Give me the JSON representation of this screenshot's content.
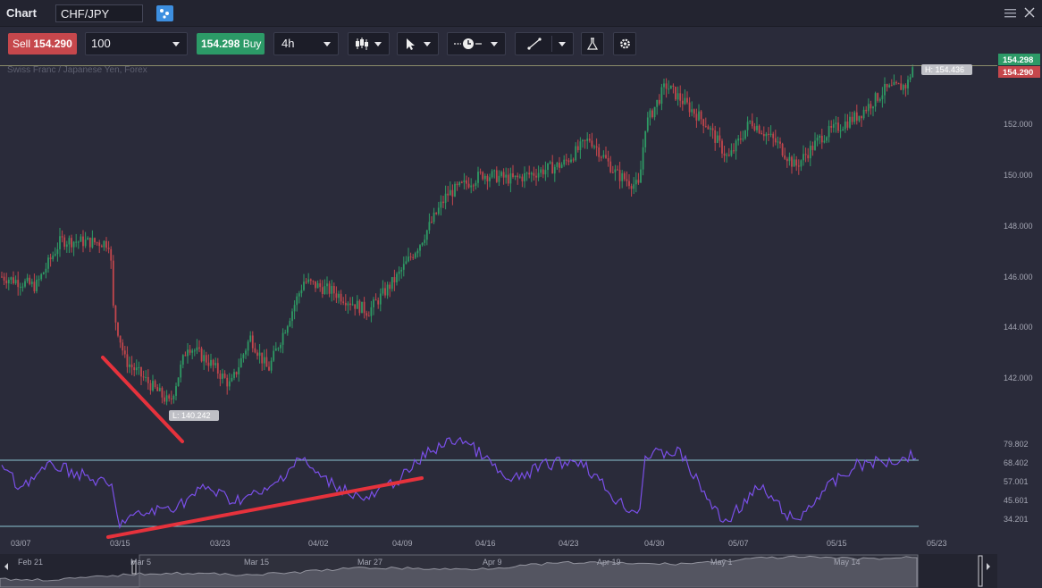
{
  "window": {
    "title": "Chart",
    "symbol_value": "CHF/JPY"
  },
  "toolbar": {
    "sell_label": "Sell",
    "sell_price": "154.290",
    "quantity": "100",
    "buy_price": "154.298",
    "buy_label": "Buy",
    "timeframe": "4h"
  },
  "chart": {
    "instrument_caption": "Swiss Franc / Japanese Yen, Forex",
    "price_axis_ticks": [
      "152.000",
      "150.000",
      "148.000",
      "146.000",
      "144.000",
      "142.000"
    ],
    "ask_tag": "154.298",
    "bid_tag": "154.290",
    "high_label": "H: 154.436",
    "low_label": "L: 140.242",
    "rsi_axis_ticks": [
      "79.802",
      "68.402",
      "57.001",
      "45.601",
      "34.201"
    ],
    "date_ticks": [
      "03/07",
      "03/15",
      "03/23",
      "04/02",
      "04/09",
      "04/16",
      "04/23",
      "04/30",
      "05/07",
      "05/15",
      "05/23"
    ],
    "navigator_ticks": [
      "Feb 21",
      "Mar 5",
      "Mar 15",
      "Mar 27",
      "Apr 9",
      "Apr 19",
      "May 1",
      "May 14"
    ],
    "colors": {
      "up": "#2e9a64",
      "down": "#c2464c",
      "rsi_line": "#7a4fe8",
      "trend_line": "#e6323c",
      "ask": "#2c9a67",
      "bid": "#c6474c"
    }
  },
  "chart_data": {
    "type": "line",
    "x": [
      "03/07",
      "03/15",
      "03/23",
      "04/02",
      "04/09",
      "04/16",
      "04/23",
      "04/30",
      "05/07",
      "05/15",
      "05/23"
    ],
    "series": [
      {
        "name": "",
        "values": [
          146.1,
          142.8,
          142.5,
          145.9,
          145.5,
          149.9,
          150.5,
          153.0,
          151.5,
          152.8,
          154.3
        ]
      }
    ],
    "y_ticks": [
      142,
      144,
      146,
      148,
      150,
      152
    ],
    "ylim": [
      141,
      154.6
    ],
    "high": 154.436,
    "low": 140.242,
    "rsi_ticks": [
      34.201,
      45.601,
      57.001,
      68.402,
      79.802
    ],
    "grid": false
  }
}
